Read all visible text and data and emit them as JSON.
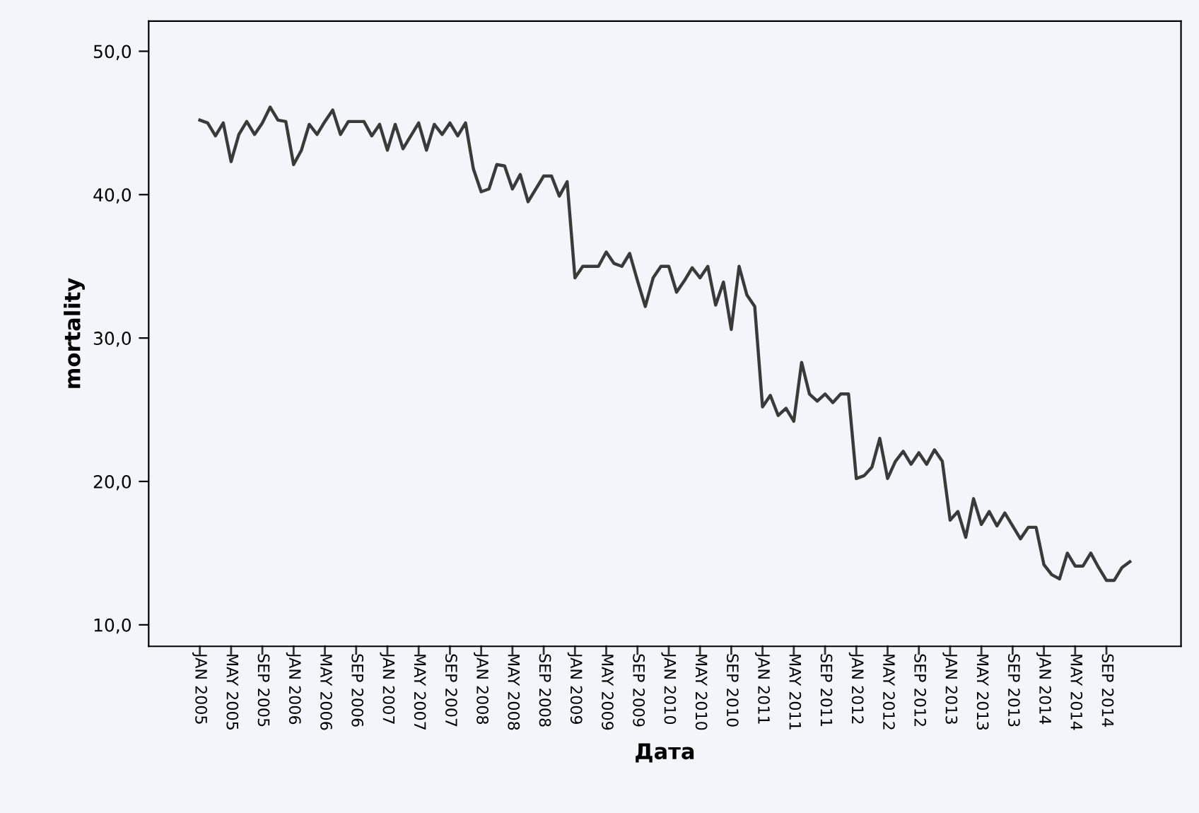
{
  "chart_data": {
    "type": "line",
    "xlabel": "Дата",
    "ylabel": "mortality",
    "categories": [
      "JAN 2005",
      null,
      null,
      null,
      "MAY 2005",
      null,
      null,
      null,
      "SEP 2005",
      null,
      null,
      null,
      "JAN 2006",
      null,
      null,
      null,
      "MAY 2006",
      null,
      null,
      null,
      "SEP 2006",
      null,
      null,
      null,
      "JAN 2007",
      null,
      null,
      null,
      "MAY 2007",
      null,
      null,
      null,
      "SEP 2007",
      null,
      null,
      null,
      "JAN 2008",
      null,
      null,
      null,
      "MAY 2008",
      null,
      null,
      null,
      "SEP 2008",
      null,
      null,
      null,
      "JAN 2009",
      null,
      null,
      null,
      "MAY 2009",
      null,
      null,
      null,
      "SEP 2009",
      null,
      null,
      null,
      "JAN 2010",
      null,
      null,
      null,
      "MAY 2010",
      null,
      null,
      null,
      "SEP 2010",
      null,
      null,
      null,
      "JAN 2011",
      null,
      null,
      null,
      "MAY 2011",
      null,
      null,
      null,
      "SEP 2011",
      null,
      null,
      null,
      "JAN 2012",
      null,
      null,
      null,
      "MAY 2012",
      null,
      null,
      null,
      "SEP 2012",
      null,
      null,
      null,
      "JAN 2013",
      null,
      null,
      null,
      "MAY 2013",
      null,
      null,
      null,
      "SEP 2013",
      null,
      null,
      null,
      "JAN 2014",
      null,
      null,
      null,
      "MAY 2014",
      null,
      null,
      null,
      "SEP 2014",
      null,
      null,
      null
    ],
    "series": [
      {
        "color": "#3a3a3a",
        "values": [
          45.2,
          45.0,
          44.1,
          45.0,
          42.3,
          44.2,
          45.1,
          44.2,
          45.0,
          46.1,
          45.2,
          45.1,
          42.1,
          43.1,
          44.9,
          44.2,
          45.1,
          45.9,
          44.2,
          45.1,
          45.1,
          45.1,
          44.1,
          44.9,
          43.1,
          44.9,
          43.2,
          44.1,
          45.0,
          43.1,
          44.9,
          44.2,
          45.0,
          44.1,
          45.0,
          41.8,
          40.2,
          40.4,
          42.1,
          42.0,
          40.4,
          41.4,
          39.5,
          40.4,
          41.3,
          41.3,
          39.9,
          40.9,
          34.2,
          35.0,
          35.0,
          35.0,
          36.0,
          35.2,
          35.0,
          35.9,
          34.0,
          32.2,
          34.2,
          35.0,
          35.0,
          33.2,
          34.0,
          34.9,
          34.2,
          35.0,
          32.3,
          33.9,
          30.6,
          35.0,
          33.0,
          32.2,
          25.2,
          26.0,
          24.6,
          25.1,
          24.2,
          28.3,
          26.1,
          25.6,
          26.1,
          25.5,
          26.1,
          26.1,
          20.2,
          20.4,
          21.0,
          23.0,
          20.2,
          21.4,
          22.1,
          21.2,
          22.0,
          21.2,
          22.2,
          21.4,
          17.3,
          17.9,
          16.1,
          18.8,
          17.0,
          17.9,
          16.9,
          17.8,
          16.9,
          16.0,
          16.8,
          16.8,
          14.2,
          13.5,
          13.2,
          15.0,
          14.1,
          14.1,
          15.0,
          14.0,
          13.1,
          13.1,
          14.0,
          14.4
        ]
      }
    ],
    "ylim": [
      8.5,
      52.1
    ],
    "yticks": [
      {
        "value": 10,
        "label": "10,0"
      },
      {
        "value": 20,
        "label": "20,0"
      },
      {
        "value": 30,
        "label": "30,0"
      },
      {
        "value": 40,
        "label": "40,0"
      },
      {
        "value": 50,
        "label": "50,0"
      }
    ],
    "grid": false,
    "marker": "none",
    "line_style": "solid"
  }
}
